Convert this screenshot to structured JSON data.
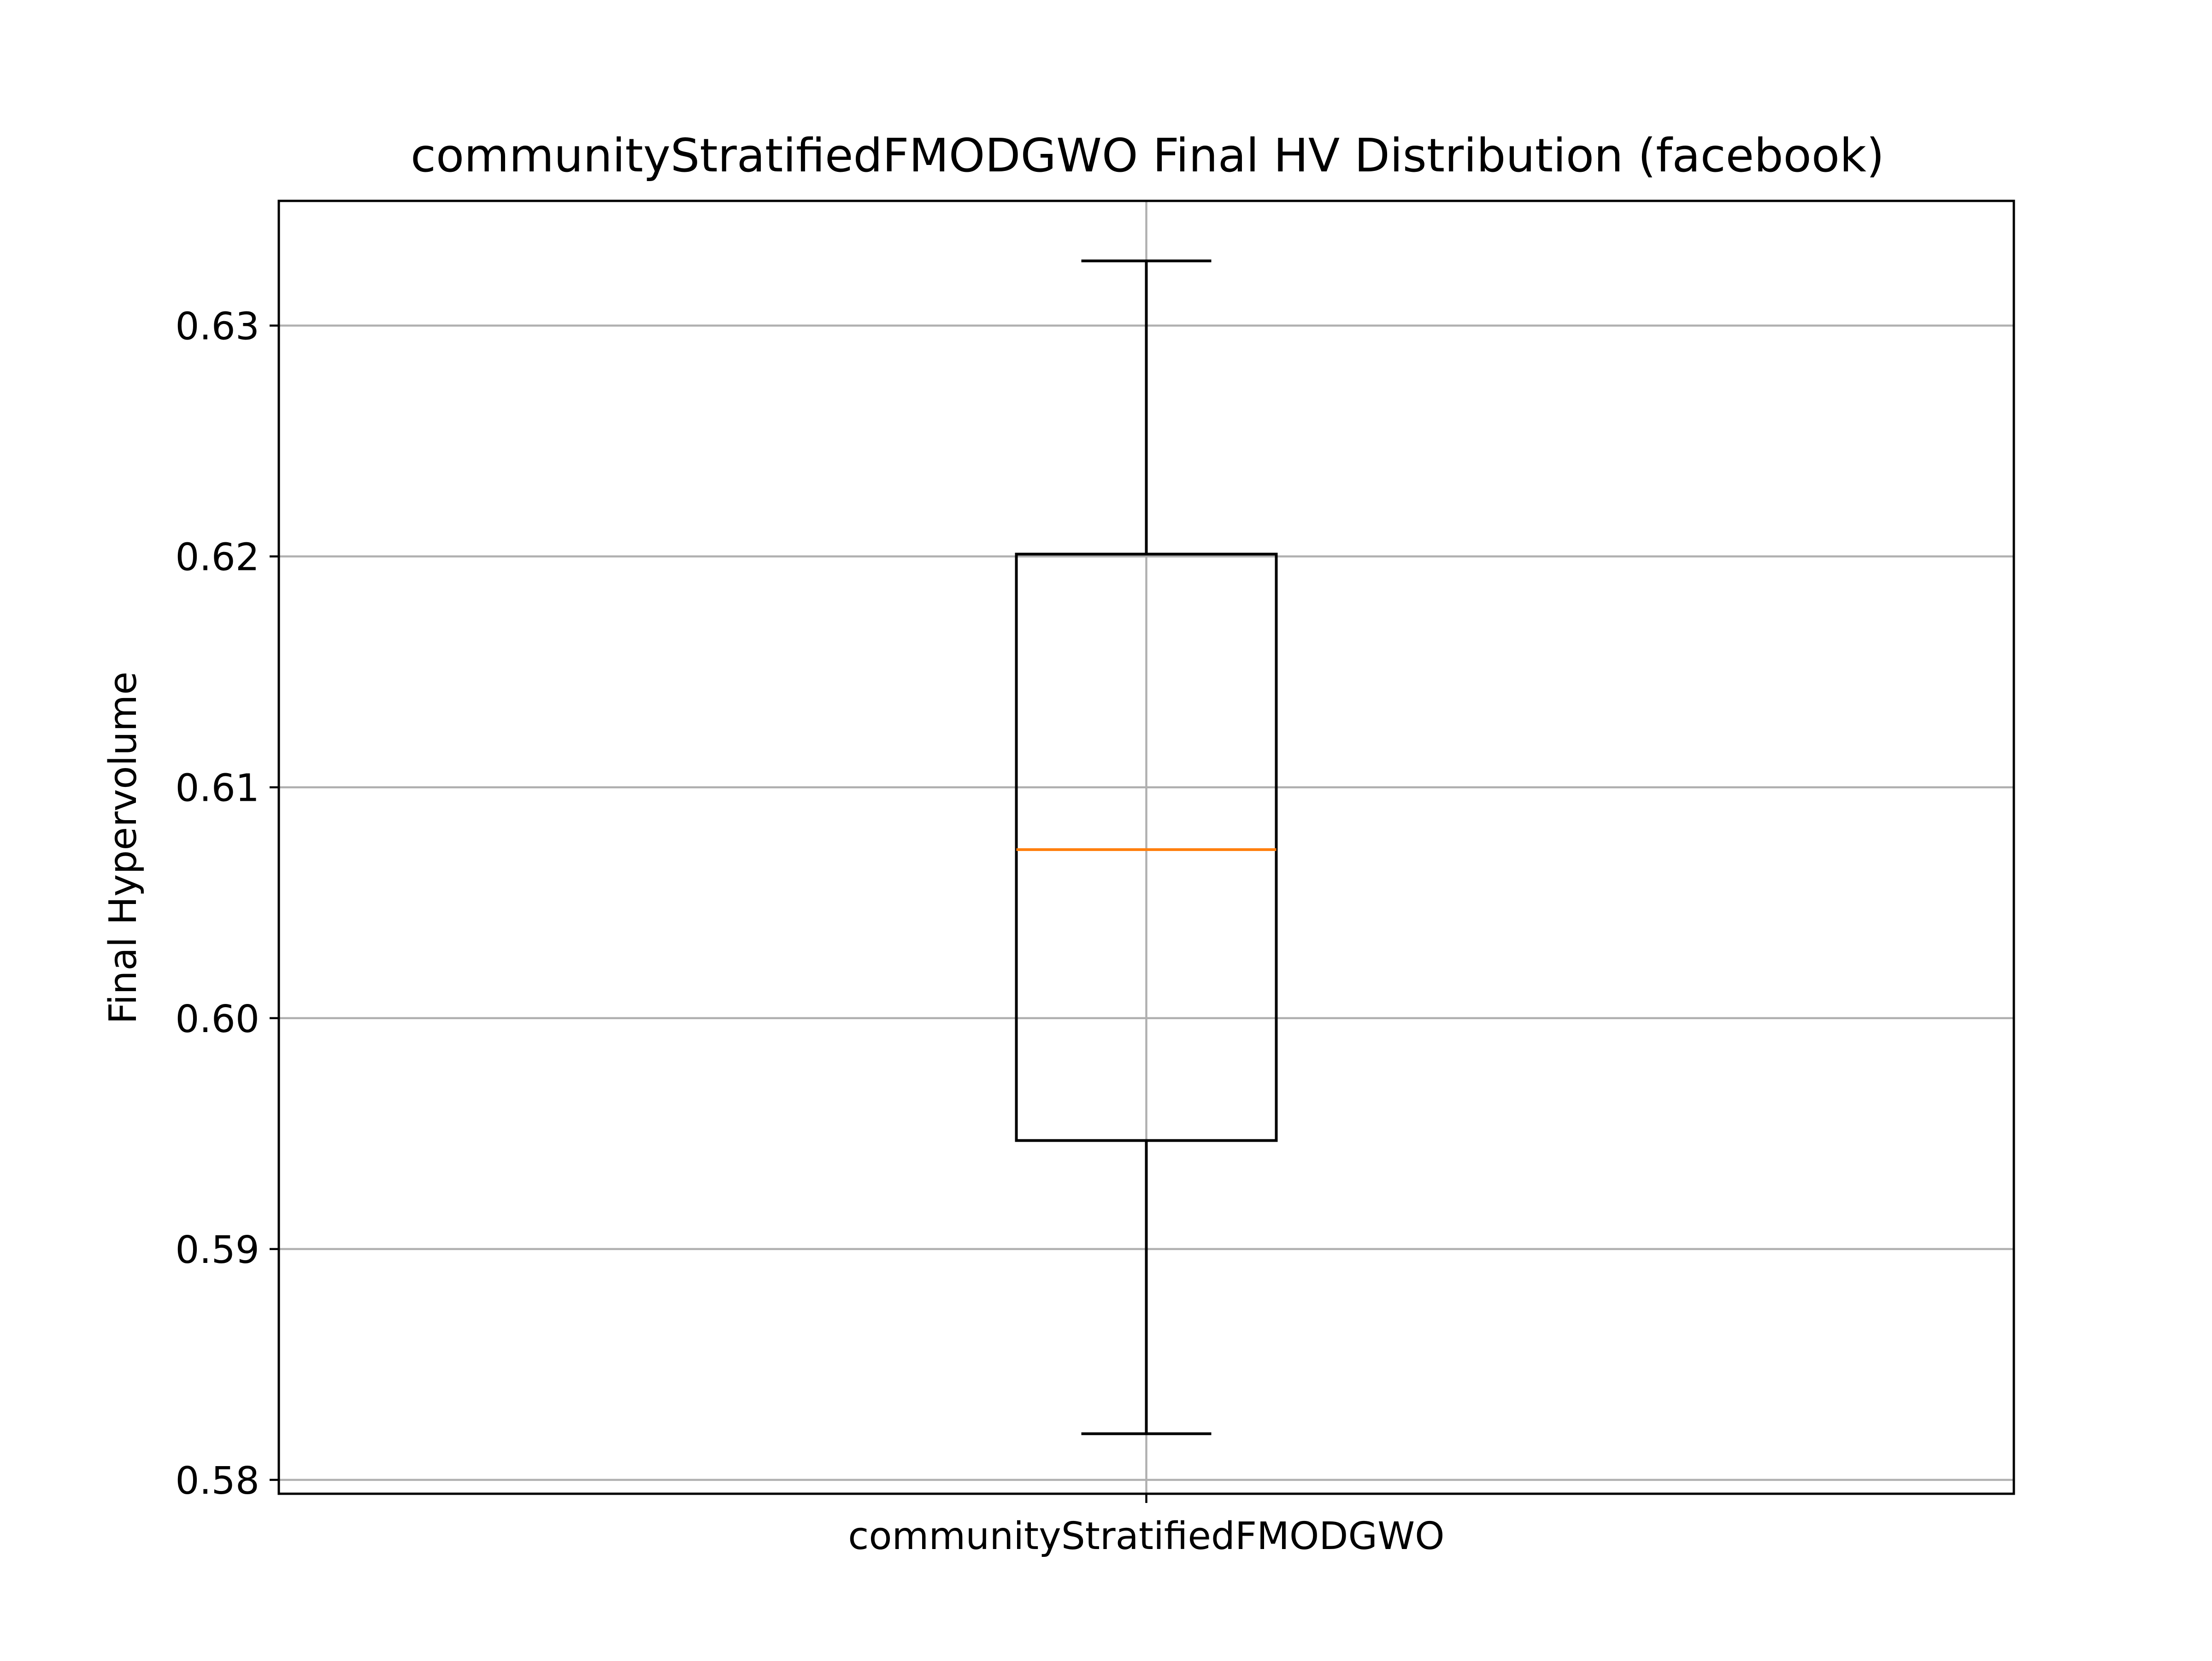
{
  "chart_data": {
    "type": "box",
    "title": "communityStratifiedFMODGWO Final HV Distribution (facebook)",
    "xlabel": "",
    "ylabel": "Final Hypervolume",
    "categories": [
      "communityStratifiedFMODGWO"
    ],
    "ylim": [
      0.5794,
      0.6354
    ],
    "yticks": [
      0.58,
      0.59,
      0.6,
      0.61,
      0.62,
      0.63
    ],
    "ytick_labels": [
      "0.58",
      "0.59",
      "0.60",
      "0.61",
      "0.62",
      "0.63"
    ],
    "grid": true,
    "boxes": [
      {
        "category": "communityStratifiedFMODGWO",
        "whisker_low": 0.582,
        "q1": 0.5947,
        "median": 0.6073,
        "q3": 0.6201,
        "whisker_high": 0.6328
      }
    ],
    "colors": {
      "box": "#000000",
      "median": "#ff7f0e",
      "grid": "#b0b0b0"
    }
  }
}
